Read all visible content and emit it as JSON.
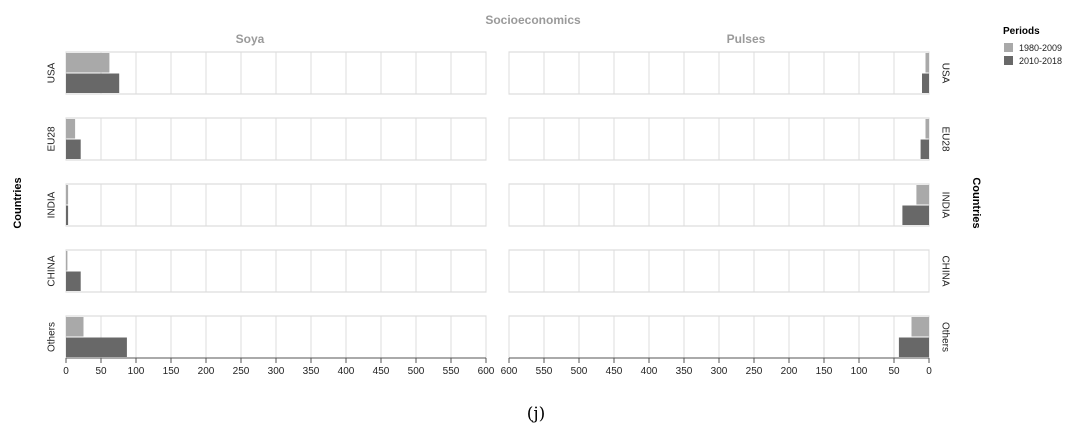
{
  "chart_data": {
    "type": "bar",
    "title": "Socioeconomics",
    "caption": "(j)",
    "ylabel": "Countries",
    "categories": [
      "USA",
      "EU28",
      "INDIA",
      "CHINA",
      "Others"
    ],
    "legend": {
      "title": "Periods",
      "placement": "top-right",
      "entries": [
        {
          "name": "1980-2009",
          "color": "#a9a9a9"
        },
        {
          "name": "2010-2018",
          "color": "#686868"
        }
      ]
    },
    "grid": true,
    "panels": [
      {
        "title": "Soya",
        "orientation": "left-to-right",
        "xlim": [
          0,
          600
        ],
        "ticks": [
          0,
          50,
          100,
          150,
          200,
          250,
          300,
          350,
          400,
          450,
          500,
          550,
          600
        ],
        "series": [
          {
            "name": "1980-2009",
            "values": [
              62,
              13,
              3,
              2,
              25
            ]
          },
          {
            "name": "2010-2018",
            "values": [
              76,
              21,
              3,
              21,
              87
            ]
          }
        ]
      },
      {
        "title": "Pulses",
        "orientation": "right-to-left",
        "xlim": [
          0,
          600
        ],
        "ticks": [
          600,
          550,
          500,
          450,
          400,
          350,
          300,
          250,
          200,
          150,
          100,
          50,
          0
        ],
        "series": [
          {
            "name": "1980-2009",
            "values": [
              5,
              5,
              18,
              0,
              25
            ]
          },
          {
            "name": "2010-2018",
            "values": [
              10,
              12,
              38,
              0,
              43
            ]
          }
        ]
      }
    ]
  }
}
